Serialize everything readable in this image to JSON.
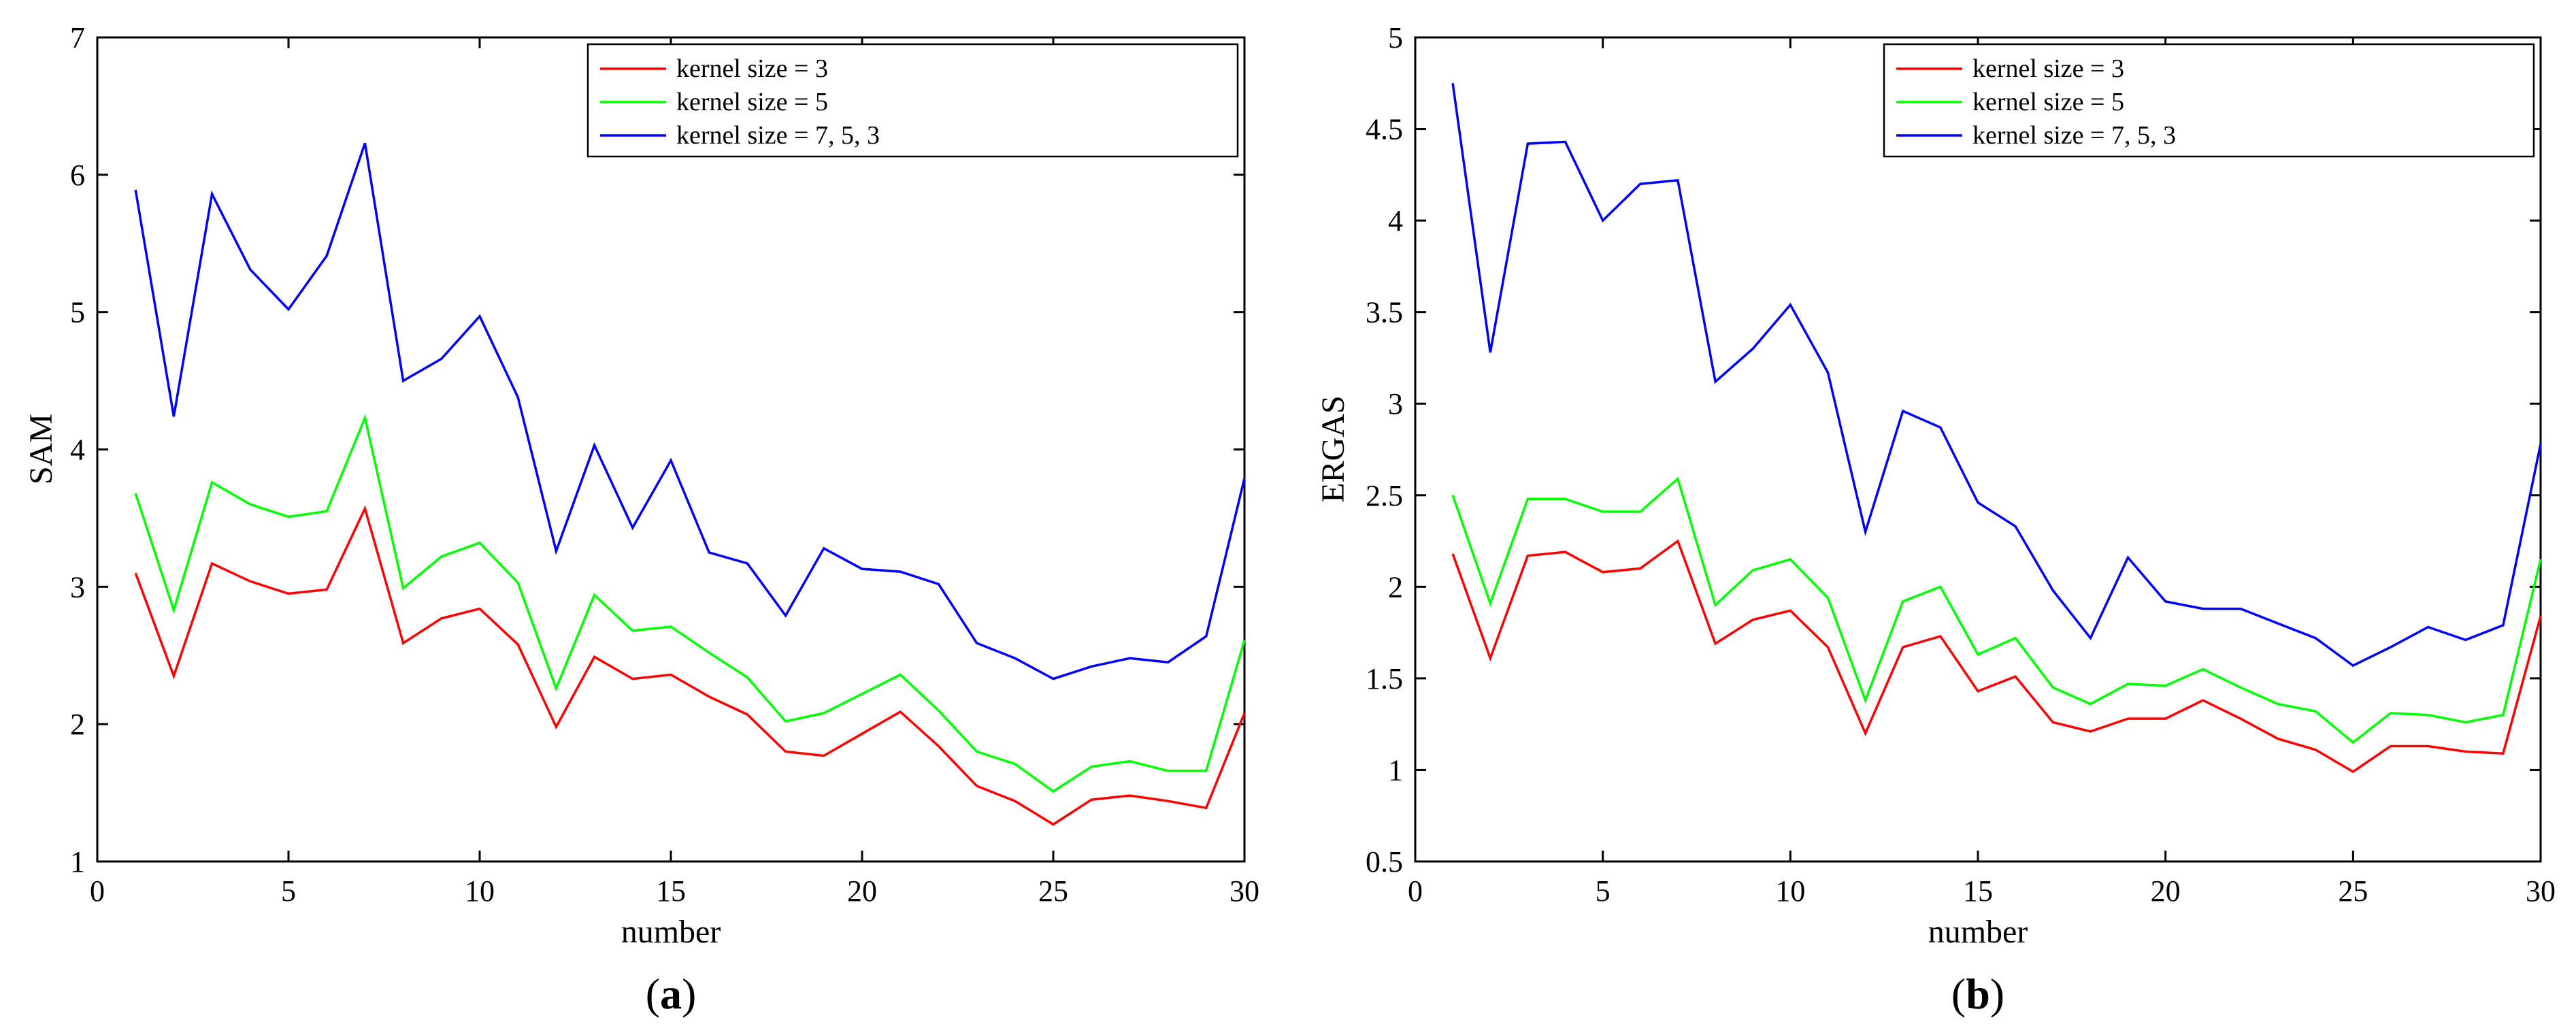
{
  "colors": {
    "red": "#ff0000",
    "green": "#00ff00",
    "blue": "#0000ff"
  },
  "chart_data": [
    {
      "id": "a",
      "type": "line",
      "panel_label": "a",
      "xlabel": "number",
      "ylabel": "SAM",
      "xlim": [
        0,
        30
      ],
      "ylim": [
        1,
        7
      ],
      "xticks": [
        0,
        5,
        10,
        15,
        20,
        25,
        30
      ],
      "yticks": [
        1,
        2,
        3,
        4,
        5,
        6,
        7
      ],
      "legend_location": "top-right",
      "x": [
        1,
        2,
        3,
        4,
        5,
        6,
        7,
        8,
        9,
        10,
        11,
        12,
        13,
        14,
        15,
        16,
        17,
        18,
        19,
        20,
        21,
        22,
        23,
        24,
        25,
        26,
        27,
        28,
        29,
        30
      ],
      "series": [
        {
          "name": "kernel size = 3",
          "color": "#ff0000",
          "values": [
            3.1,
            2.35,
            3.17,
            3.04,
            2.95,
            2.98,
            3.57,
            2.59,
            2.77,
            2.84,
            2.58,
            1.98,
            2.49,
            2.33,
            2.36,
            2.2,
            2.07,
            1.8,
            1.77,
            1.93,
            2.09,
            1.84,
            1.55,
            1.44,
            1.27,
            1.45,
            1.48,
            1.44,
            1.39,
            2.08
          ]
        },
        {
          "name": "kernel size = 5",
          "color": "#00ff00",
          "values": [
            3.68,
            2.83,
            3.76,
            3.6,
            3.51,
            3.55,
            4.23,
            2.99,
            3.22,
            3.32,
            3.03,
            2.26,
            2.94,
            2.68,
            2.71,
            2.52,
            2.34,
            2.02,
            2.08,
            2.22,
            2.36,
            2.1,
            1.8,
            1.71,
            1.51,
            1.69,
            1.73,
            1.66,
            1.66,
            2.61
          ]
        },
        {
          "name": "kernel size = 7, 5, 3",
          "color": "#0000ff",
          "values": [
            5.89,
            4.24,
            5.86,
            5.31,
            5.02,
            5.41,
            6.23,
            4.5,
            4.66,
            4.97,
            4.38,
            3.26,
            4.03,
            3.43,
            3.92,
            3.25,
            3.17,
            2.79,
            3.28,
            3.13,
            3.11,
            3.02,
            2.59,
            2.48,
            2.33,
            2.42,
            2.48,
            2.45,
            2.64,
            3.79
          ]
        }
      ]
    },
    {
      "id": "b",
      "type": "line",
      "panel_label": "b",
      "xlabel": "number",
      "ylabel": "ERGAS",
      "xlim": [
        0,
        30
      ],
      "ylim": [
        0.5,
        5
      ],
      "xticks": [
        0,
        5,
        10,
        15,
        20,
        25,
        30
      ],
      "yticks": [
        0.5,
        1,
        1.5,
        2,
        2.5,
        3,
        3.5,
        4,
        4.5,
        5
      ],
      "legend_location": "top-right",
      "x": [
        1,
        2,
        3,
        4,
        5,
        6,
        7,
        8,
        9,
        10,
        11,
        12,
        13,
        14,
        15,
        16,
        17,
        18,
        19,
        20,
        21,
        22,
        23,
        24,
        25,
        26,
        27,
        28,
        29,
        30
      ],
      "series": [
        {
          "name": "kernel size = 3",
          "color": "#ff0000",
          "values": [
            2.18,
            1.61,
            2.17,
            2.19,
            2.08,
            2.1,
            2.25,
            1.69,
            1.82,
            1.87,
            1.67,
            1.2,
            1.67,
            1.73,
            1.43,
            1.51,
            1.26,
            1.21,
            1.28,
            1.28,
            1.38,
            1.28,
            1.17,
            1.11,
            0.99,
            1.13,
            1.13,
            1.1,
            1.09,
            1.84
          ]
        },
        {
          "name": "kernel size = 5",
          "color": "#00ff00",
          "values": [
            2.5,
            1.91,
            2.48,
            2.48,
            2.41,
            2.41,
            2.59,
            1.9,
            2.09,
            2.15,
            1.94,
            1.38,
            1.92,
            2.0,
            1.63,
            1.72,
            1.45,
            1.36,
            1.47,
            1.46,
            1.55,
            1.45,
            1.36,
            1.32,
            1.15,
            1.31,
            1.3,
            1.26,
            1.3,
            2.15
          ]
        },
        {
          "name": "kernel size = 7, 5, 3",
          "color": "#0000ff",
          "values": [
            4.75,
            3.28,
            4.42,
            4.43,
            4.0,
            4.2,
            4.22,
            3.12,
            3.3,
            3.54,
            3.17,
            2.3,
            2.96,
            2.87,
            2.46,
            2.33,
            1.98,
            1.72,
            2.16,
            1.92,
            1.88,
            1.88,
            1.8,
            1.72,
            1.57,
            1.67,
            1.78,
            1.71,
            1.79,
            2.78
          ]
        }
      ]
    }
  ]
}
